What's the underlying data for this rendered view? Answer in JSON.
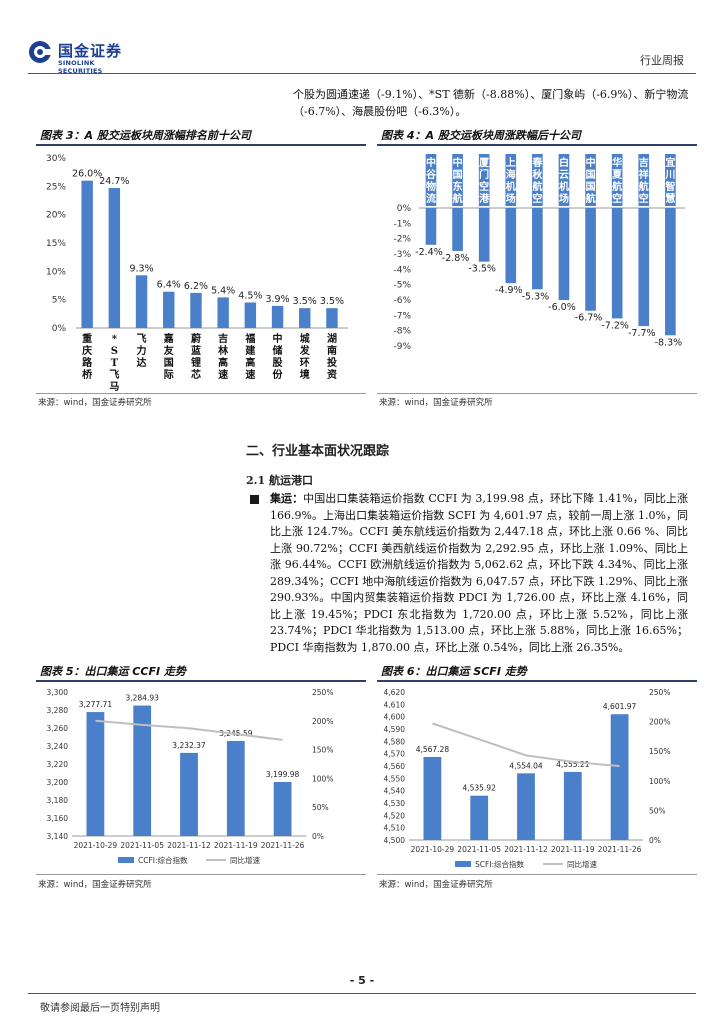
{
  "header": {
    "logo_cn": "国金证券",
    "logo_en": "SINOLINK SECURITIES",
    "doc_type": "行业周报"
  },
  "intro_text": "个股为圆通速递（-9.1%）、*ST 德新（-8.88%）、厦门象屿（-6.9%）、新宁物流（-6.7%）、海晨股份吧（-6.3%）。",
  "figures": {
    "fig3_title": "图表 3：A 股交运板块周涨幅排名前十公司",
    "fig4_title": "图表 4：A 股交运板块周涨跌幅后十公司",
    "fig5_title": "图表 5：出口集运 CCFI 走势",
    "fig6_title": "图表 6：出口集运 SCFI 走势",
    "source": "来源：wind，国金证券研究所"
  },
  "section": {
    "title": "二、行业基本面状况跟踪",
    "sub": "2.1 航运港口",
    "bullet_label": "集运：",
    "bullet_text": "中国出口集装箱运价指数 CCFI 为 3,199.98 点，环比下降 1.41%，同比上涨 166.9%。上海出口集装箱运价指数 SCFI 为 4,601.97 点，较前一周上涨 1.0%，同比上涨 124.7%。CCFI 美东航线运价指数为 2,447.18 点，环比上涨 0.66 %、同比上涨 90.72%；CCFI 美西航线运价指数为 2,292.95 点，环比上涨 1.09%、同比上涨 96.44%。CCFI 欧洲航线运价指数为 5,062.62 点，环比下跌 4.34%、同比上涨 289.34%；CCFI 地中海航线运价指数为 6,047.57 点，环比下跌 1.29%、同比上涨 290.93%。中国内贸集装箱运价指数 PDCI 为 1,726.00 点，环比上涨 4.16%，同比上涨 19.45%；PDCI 东北指数为 1,720.00 点，环比上涨 5.52%，同比上涨 23.74%；PDCI 华北指数为 1,513.00 点，环比上涨 5.88%，同比上涨 16.65%；PDCI 华南指数为 1,870.00 点，环比上涨 0.54%，同比上涨 26.35%。"
  },
  "footer": {
    "page": "- 5 -",
    "disclaimer": "敬请参阅最后一页特别声明"
  },
  "colors": {
    "bar": "#4a7fc9",
    "line": "#bfbfbf",
    "accent": "#1c3f8f"
  },
  "chart_data": [
    {
      "type": "bar",
      "categories": [
        "重庆路桥",
        "*ST飞马",
        "飞力达",
        "嘉友国际",
        "蔚蓝锂芯",
        "吉林高速",
        "福建高速",
        "中储股份",
        "城发环境",
        "湖南投资"
      ],
      "values": [
        26.0,
        24.7,
        9.3,
        6.4,
        6.2,
        5.4,
        4.5,
        3.9,
        3.5,
        3.5
      ],
      "value_labels": [
        "26.0%",
        "24.7%",
        "9.3%",
        "6.4%",
        "6.2%",
        "5.4%",
        "4.5%",
        "3.9%",
        "3.5%",
        "3.5%"
      ],
      "ylim": [
        0,
        30
      ],
      "yticks": [
        "0%",
        "5%",
        "10%",
        "15%",
        "20%",
        "25%",
        "30%"
      ]
    },
    {
      "type": "bar",
      "categories": [
        "中谷物流",
        "中国东航",
        "厦门空港",
        "上海机场",
        "春秋航空",
        "白云机场",
        "中国国航",
        "华夏航空",
        "吉祥航空",
        "宜川智慧"
      ],
      "values": [
        -2.4,
        -2.8,
        -3.5,
        -4.9,
        -5.3,
        -6.0,
        -6.7,
        -7.2,
        -7.7,
        -8.3
      ],
      "value_labels": [
        "-2.4%",
        "-2.8%",
        "-3.5%",
        "-4.9%",
        "-5.3%",
        "-6.0%",
        "-6.7%",
        "-7.2%",
        "-7.7%",
        "-8.3%"
      ],
      "ylim": [
        -9,
        0
      ],
      "yticks": [
        "0%",
        "-1%",
        "-2%",
        "-3%",
        "-4%",
        "-5%",
        "-6%",
        "-7%",
        "-8%",
        "-9%"
      ]
    },
    {
      "type": "bar",
      "categories": [
        "2021-10-29",
        "2021-11-05",
        "2021-11-12",
        "2021-11-19",
        "2021-11-26"
      ],
      "series": [
        {
          "name": "CCFI:综合指数",
          "values": [
            3277.71,
            3284.93,
            3232.37,
            3245.59,
            3199.98
          ],
          "labels": [
            "3,277.71",
            "3,284.93",
            "3,232.37",
            "3,245.59",
            "3,199.98"
          ]
        },
        {
          "name": "同比增速",
          "type": "line",
          "axis": "right",
          "values": [
            200,
            193,
            187,
            177,
            166.9
          ]
        }
      ],
      "ylim": [
        3140,
        3300
      ],
      "yticks": [
        "3,140",
        "3,160",
        "3,180",
        "3,200",
        "3,220",
        "3,240",
        "3,260",
        "3,280",
        "3,300"
      ],
      "y2lim": [
        0,
        250
      ],
      "y2ticks": [
        "0%",
        "50%",
        "100%",
        "150%",
        "200%",
        "250%"
      ]
    },
    {
      "type": "bar",
      "categories": [
        "2021-10-29",
        "2021-11-05",
        "2021-11-12",
        "2021-11-19",
        "2021-11-26"
      ],
      "series": [
        {
          "name": "SCFI:综合指数",
          "values": [
            4567.28,
            4535.92,
            4554.04,
            4555.21,
            4601.97
          ],
          "labels": [
            "4,567.28",
            "4,535.92",
            "4,554.04",
            "4,555.21",
            "4,601.97"
          ]
        },
        {
          "name": "同比增速",
          "type": "line",
          "axis": "right",
          "values": [
            197,
            170,
            143,
            132,
            124.7
          ]
        }
      ],
      "ylim": [
        4500,
        4620
      ],
      "yticks": [
        "4,500",
        "4,510",
        "4,520",
        "4,530",
        "4,540",
        "4,550",
        "4,560",
        "4,570",
        "4,580",
        "4,590",
        "4,600",
        "4,610",
        "4,620"
      ],
      "y2lim": [
        0,
        250
      ],
      "y2ticks": [
        "0%",
        "50%",
        "100%",
        "150%",
        "200%",
        "250%"
      ]
    }
  ]
}
